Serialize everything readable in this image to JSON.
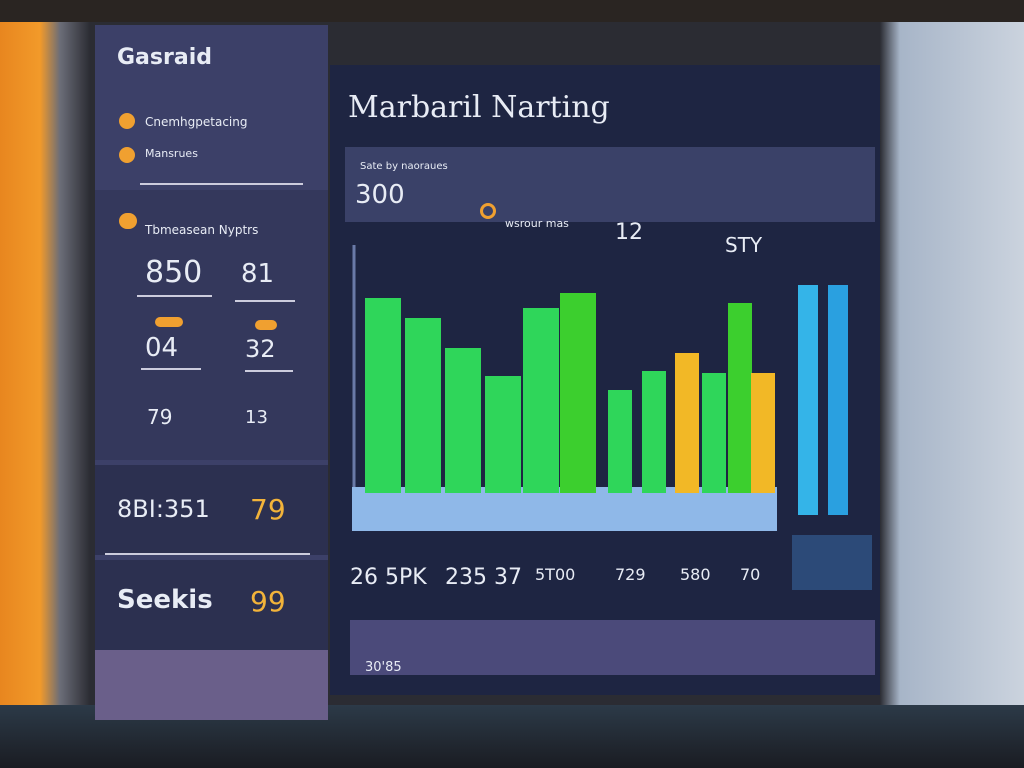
{
  "sidebar": {
    "title": "Gasraid",
    "menu": [
      "Cnemhgpetacing",
      "Mansrues"
    ],
    "section": "Tbmeasean Nyptrs",
    "stats": [
      "850",
      "81",
      "04",
      "32",
      "79",
      "13"
    ],
    "panel_a": {
      "value": "8BI:351",
      "badge": "79"
    },
    "panel_b": {
      "label": "Seekis",
      "badge": "99"
    }
  },
  "main": {
    "title": "Marbaril Narting",
    "header_label": "Sate by naoraues",
    "header_value": "300",
    "header_tag": "wsrour mas",
    "header_count": "12",
    "header_code": "STY",
    "chart": {
      "bars": [
        {
          "value": 195,
          "color": "#2fd65a"
        },
        {
          "value": 175,
          "color": "#2fd65a"
        },
        {
          "value": 145,
          "color": "#2fd65a"
        },
        {
          "value": 117,
          "color": "#2fd65a"
        },
        {
          "value": 185,
          "color": "#2fd65a"
        },
        {
          "value": 200,
          "color": "#3ccf2e"
        },
        {
          "value": 103,
          "color": "#2fd65a"
        },
        {
          "value": 122,
          "color": "#2fd65a"
        },
        {
          "value": 140,
          "color": "#f2b826"
        },
        {
          "value": 120,
          "color": "#2fd65a"
        },
        {
          "value": 190,
          "color": "#3ccf2e"
        },
        {
          "value": 120,
          "color": "#f2b826"
        }
      ],
      "side_bars": [
        {
          "value": 230,
          "color": "#34b4e8"
        },
        {
          "value": 230,
          "color": "#2aa0e0"
        }
      ]
    },
    "metrics": [
      "26 5PK",
      "235 37",
      "5T00",
      "729",
      "580",
      "70"
    ],
    "footer": "30'85"
  }
}
